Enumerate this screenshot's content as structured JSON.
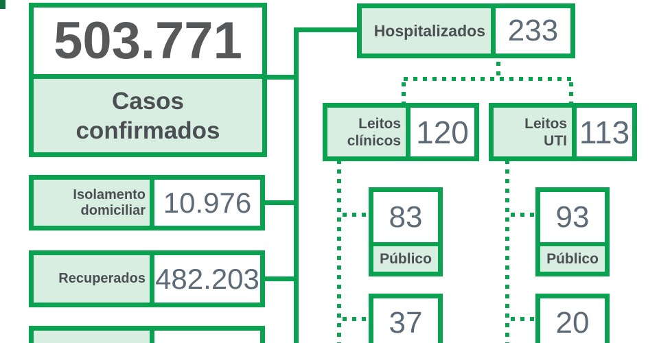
{
  "palette": {
    "green": "#0aa250",
    "mint": "#d8eee1",
    "dark_green": "#11713e",
    "label_text": "#4b4f54",
    "big_num": "#57585a",
    "num_text": "#5d6a78"
  },
  "confirmed": {
    "value": "503.771",
    "label_line1": "Casos",
    "label_line2": "confirmados"
  },
  "rows": [
    {
      "label_line1": "Isolamento",
      "label_line2": "domiciliar",
      "value": "10.976"
    },
    {
      "label_line1": "Recuperados",
      "label_line2": "",
      "value": "482.203"
    }
  ],
  "hospitalized": {
    "label": "Hospitalizados",
    "value": "233"
  },
  "beds": [
    {
      "label_line1": "Leitos",
      "label_line2": "clínicos",
      "value": "120",
      "public": {
        "value": "83",
        "label": "Público"
      },
      "second": {
        "value": "37"
      }
    },
    {
      "label_line1": "Leitos",
      "label_line2": "UTI",
      "value": "113",
      "public": {
        "value": "93",
        "label": "Público"
      },
      "second": {
        "value": "20"
      }
    }
  ]
}
